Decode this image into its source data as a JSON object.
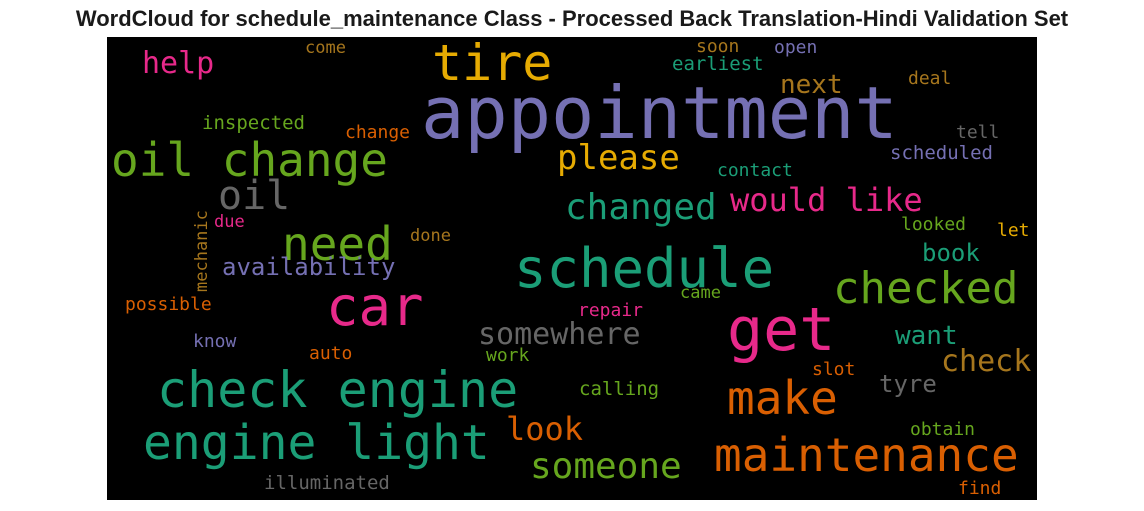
{
  "chart_data": {
    "type": "wordcloud",
    "title": "WordCloud for schedule_maintenance Class - Processed Back Translation-Hindi Validation Set",
    "background": "#000000",
    "palette": [
      "#1b9e77",
      "#d95f02",
      "#7570b3",
      "#e7298a",
      "#66a61e",
      "#e6ab02",
      "#a6761d",
      "#666666"
    ],
    "words": [
      {
        "text": "appointment",
        "size": 72,
        "color": "#7570b3"
      },
      {
        "text": "check engine",
        "size": 50,
        "color": "#1b9e77"
      },
      {
        "text": "engine light",
        "size": 48,
        "color": "#1b9e77"
      },
      {
        "text": "oil change",
        "size": 46,
        "color": "#66a61e"
      },
      {
        "text": "schedule",
        "size": 54,
        "color": "#1b9e77"
      },
      {
        "text": "car",
        "size": 54,
        "color": "#e7298a"
      },
      {
        "text": "get",
        "size": 60,
        "color": "#e7298a"
      },
      {
        "text": "tire",
        "size": 50,
        "color": "#e6ab02"
      },
      {
        "text": "maintenance",
        "size": 46,
        "color": "#d95f02"
      },
      {
        "text": "checked",
        "size": 44,
        "color": "#66a61e"
      },
      {
        "text": "need",
        "size": 46,
        "color": "#66a61e"
      },
      {
        "text": "make",
        "size": 46,
        "color": "#d95f02"
      },
      {
        "text": "someone",
        "size": 36,
        "color": "#66a61e"
      },
      {
        "text": "oil",
        "size": 40,
        "color": "#666666"
      },
      {
        "text": "changed",
        "size": 36,
        "color": "#1b9e77"
      },
      {
        "text": "please",
        "size": 34,
        "color": "#e6ab02"
      },
      {
        "text": "somewhere",
        "size": 30,
        "color": "#666666"
      },
      {
        "text": "look",
        "size": 32,
        "color": "#d95f02"
      },
      {
        "text": "would like",
        "size": 32,
        "color": "#e7298a"
      },
      {
        "text": "check",
        "size": 30,
        "color": "#a6761d"
      },
      {
        "text": "help",
        "size": 30,
        "color": "#e7298a"
      },
      {
        "text": "availability",
        "size": 24,
        "color": "#7570b3"
      },
      {
        "text": "next",
        "size": 26,
        "color": "#a6761d"
      },
      {
        "text": "want",
        "size": 26,
        "color": "#1b9e77"
      },
      {
        "text": "book",
        "size": 24,
        "color": "#1b9e77"
      },
      {
        "text": "tyre",
        "size": 24,
        "color": "#666666"
      },
      {
        "text": "earliest",
        "size": 19,
        "color": "#1b9e77"
      },
      {
        "text": "inspected",
        "size": 19,
        "color": "#66a61e"
      },
      {
        "text": "contact",
        "size": 18,
        "color": "#1b9e77"
      },
      {
        "text": "scheduled",
        "size": 19,
        "color": "#7570b3"
      },
      {
        "text": "change",
        "size": 18,
        "color": "#d95f02"
      },
      {
        "text": "deal",
        "size": 18,
        "color": "#a6761d"
      },
      {
        "text": "tell",
        "size": 18,
        "color": "#666666"
      },
      {
        "text": "soon",
        "size": 18,
        "color": "#a6761d"
      },
      {
        "text": "open",
        "size": 18,
        "color": "#7570b3"
      },
      {
        "text": "come",
        "size": 17,
        "color": "#a6761d"
      },
      {
        "text": "looked",
        "size": 18,
        "color": "#66a61e"
      },
      {
        "text": "let",
        "size": 18,
        "color": "#e6ab02"
      },
      {
        "text": "due",
        "size": 17,
        "color": "#e7298a"
      },
      {
        "text": "done",
        "size": 17,
        "color": "#a6761d"
      },
      {
        "text": "mechanic",
        "size": 17,
        "color": "#a6761d"
      },
      {
        "text": "possible",
        "size": 18,
        "color": "#d95f02"
      },
      {
        "text": "repair",
        "size": 18,
        "color": "#e7298a"
      },
      {
        "text": "came",
        "size": 17,
        "color": "#66a61e"
      },
      {
        "text": "know",
        "size": 18,
        "color": "#7570b3"
      },
      {
        "text": "auto",
        "size": 18,
        "color": "#d95f02"
      },
      {
        "text": "work",
        "size": 18,
        "color": "#66a61e"
      },
      {
        "text": "slot",
        "size": 18,
        "color": "#d95f02"
      },
      {
        "text": "calling",
        "size": 19,
        "color": "#66a61e"
      },
      {
        "text": "obtain",
        "size": 18,
        "color": "#66a61e"
      },
      {
        "text": "illuminated",
        "size": 19,
        "color": "#666666"
      },
      {
        "text": "find",
        "size": 18,
        "color": "#d95f02"
      }
    ]
  }
}
